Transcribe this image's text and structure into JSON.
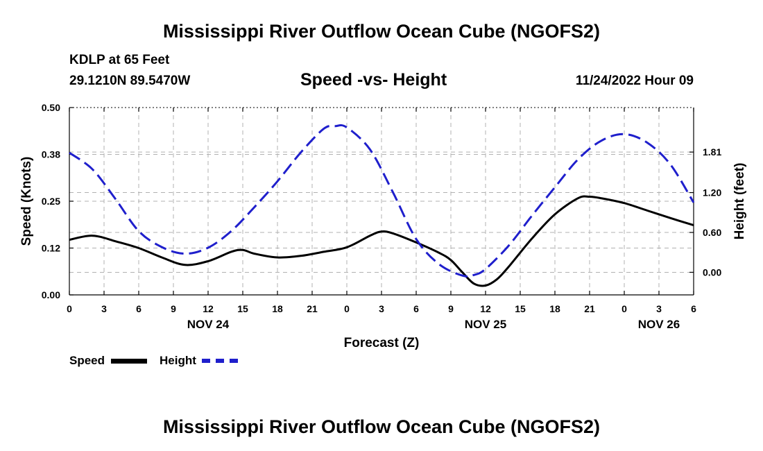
{
  "header": {
    "title": "Mississippi River Outflow Ocean Cube (NGOFS2)",
    "station_name": "KDLP at 65 Feet",
    "coords": "29.1210N  89.5470W",
    "timestamp": "11/24/2022 Hour 09"
  },
  "footer": {
    "title": "Mississippi River Outflow Ocean Cube (NGOFS2)"
  },
  "legend": {
    "speed_label": "Speed",
    "height_label": "Height"
  },
  "colors": {
    "speed": "#000000",
    "height": "#1f1fcc",
    "grid": "#b0b0b0"
  },
  "chart_data": {
    "type": "line",
    "title": "Speed -vs- Height",
    "xlabel": "Forecast (Z)",
    "ylabel": "Speed (Knots)",
    "y2label": "Height (feet)",
    "x_range_hours": [
      0,
      54
    ],
    "x_ticks": [
      {
        "h": 0,
        "label": "0"
      },
      {
        "h": 3,
        "label": "3"
      },
      {
        "h": 6,
        "label": "6"
      },
      {
        "h": 9,
        "label": "9"
      },
      {
        "h": 12,
        "label": "12"
      },
      {
        "h": 15,
        "label": "15"
      },
      {
        "h": 18,
        "label": "18"
      },
      {
        "h": 21,
        "label": "21"
      },
      {
        "h": 24,
        "label": "0"
      },
      {
        "h": 27,
        "label": "3"
      },
      {
        "h": 30,
        "label": "6"
      },
      {
        "h": 33,
        "label": "9"
      },
      {
        "h": 36,
        "label": "12"
      },
      {
        "h": 39,
        "label": "15"
      },
      {
        "h": 42,
        "label": "18"
      },
      {
        "h": 45,
        "label": "21"
      },
      {
        "h": 48,
        "label": "0"
      },
      {
        "h": 51,
        "label": "3"
      },
      {
        "h": 54,
        "label": "6"
      }
    ],
    "day_labels": [
      {
        "h": 12,
        "label": "NOV 24"
      },
      {
        "h": 36,
        "label": "NOV 25"
      },
      {
        "h": 51,
        "label": "NOV 26"
      }
    ],
    "ylim": [
      0,
      0.5
    ],
    "y_ticks": [
      {
        "v": 0,
        "label": "0.00"
      },
      {
        "v": 0.125,
        "label": "0.12"
      },
      {
        "v": 0.25,
        "label": "0.25"
      },
      {
        "v": 0.375,
        "label": "0.38"
      },
      {
        "v": 0.5,
        "label": "0.50"
      }
    ],
    "y2lim": [
      -0.34,
      2.48
    ],
    "y2_ticks": [
      {
        "v": 0.0,
        "label": "0.00"
      },
      {
        "v": 0.6,
        "label": "0.60"
      },
      {
        "v": 1.2,
        "label": "1.20"
      },
      {
        "v": 1.81,
        "label": "1.81"
      }
    ],
    "series": [
      {
        "name": "Speed",
        "axis": "left",
        "style": "solid",
        "x": [
          0,
          2,
          4,
          6,
          8,
          10,
          12,
          14,
          15,
          16,
          18,
          20,
          22,
          24,
          26,
          27,
          28,
          30,
          32,
          33,
          34,
          35,
          36,
          37,
          38,
          40,
          42,
          44,
          45,
          46,
          48,
          50,
          52,
          54
        ],
        "values": [
          0.147,
          0.158,
          0.143,
          0.125,
          0.1,
          0.08,
          0.09,
          0.115,
          0.12,
          0.11,
          0.1,
          0.104,
          0.115,
          0.127,
          0.158,
          0.169,
          0.164,
          0.14,
          0.112,
          0.093,
          0.06,
          0.03,
          0.025,
          0.042,
          0.075,
          0.15,
          0.215,
          0.258,
          0.262,
          0.258,
          0.245,
          0.225,
          0.205,
          0.186
        ]
      },
      {
        "name": "Height",
        "axis": "right",
        "style": "dashed",
        "x": [
          0,
          2,
          4,
          6,
          8,
          10,
          12,
          14,
          16,
          18,
          20,
          22,
          23,
          24,
          26,
          28,
          30,
          32,
          34,
          35,
          36,
          38,
          40,
          42,
          44,
          46,
          48,
          50,
          52,
          54
        ],
        "values": [
          1.8,
          1.55,
          1.1,
          0.62,
          0.38,
          0.28,
          0.37,
          0.62,
          0.98,
          1.37,
          1.8,
          2.16,
          2.2,
          2.18,
          1.85,
          1.2,
          0.5,
          0.12,
          -0.05,
          -0.04,
          0.05,
          0.4,
          0.85,
          1.28,
          1.7,
          1.98,
          2.08,
          1.95,
          1.62,
          1.05
        ]
      }
    ]
  }
}
